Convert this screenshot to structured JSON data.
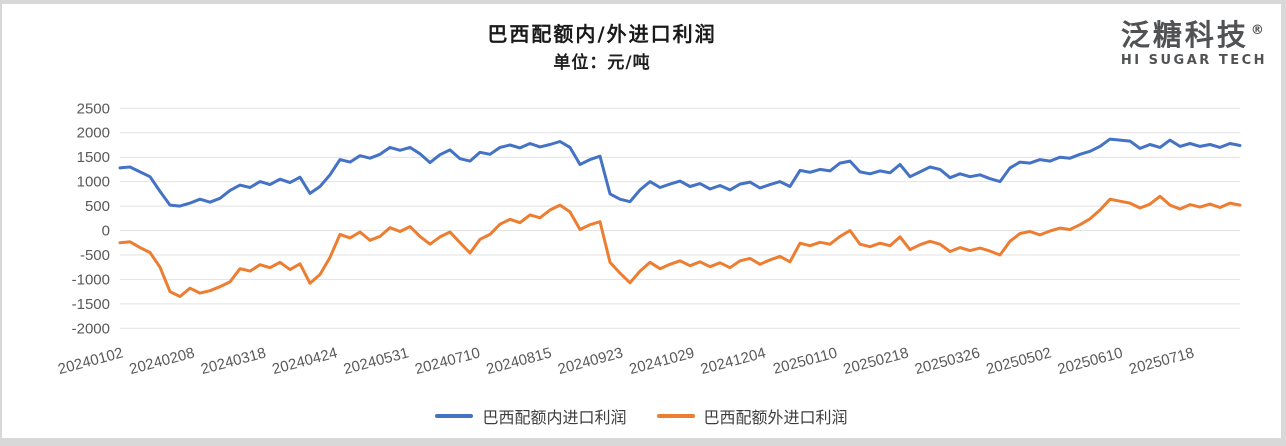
{
  "header": {
    "title": "巴西配额内/外进口利润",
    "subtitle": "单位：元/吨"
  },
  "logo": {
    "cn": "泛糖科技",
    "reg": "®",
    "en": "HI SUGAR TECH"
  },
  "colors": {
    "series_blue": "#4472C4",
    "series_orange": "#ED7D31",
    "grid": "#E2E2E2",
    "axis_text": "#595959",
    "title_text": "#1A1A1A",
    "logo_text": "#515254",
    "page_edge": "#D8D8D8",
    "card_background": "#FFFFFF"
  },
  "chart_data": {
    "type": "line",
    "title": "巴西配额内/外进口利润",
    "unit_label": "单位：元/吨",
    "ylabel": "",
    "xlabel": "",
    "ylim": [
      -2000,
      2500
    ],
    "yticks": [
      2500,
      2000,
      1500,
      1000,
      500,
      0,
      -500,
      -1000,
      -1500,
      -2000
    ],
    "xticks": [
      "20240102",
      "20240208",
      "20240318",
      "20240424",
      "20240531",
      "20240710",
      "20240815",
      "20240923",
      "20241029",
      "20241204",
      "20250110",
      "20250218",
      "20250326",
      "20250502",
      "20250610",
      "20250718"
    ],
    "grid": true,
    "legend_position": "bottom",
    "series": [
      {
        "name": "巴西配额内进口利润",
        "color": "#4472C4",
        "values": [
          1280,
          1300,
          1200,
          1100,
          800,
          520,
          500,
          560,
          640,
          580,
          660,
          820,
          930,
          880,
          1000,
          940,
          1050,
          980,
          1090,
          760,
          900,
          1140,
          1450,
          1400,
          1530,
          1480,
          1560,
          1700,
          1640,
          1700,
          1570,
          1390,
          1550,
          1650,
          1470,
          1420,
          1600,
          1560,
          1700,
          1750,
          1690,
          1780,
          1710,
          1760,
          1820,
          1700,
          1350,
          1450,
          1520,
          750,
          640,
          590,
          830,
          1000,
          880,
          950,
          1010,
          900,
          960,
          850,
          920,
          830,
          950,
          990,
          870,
          940,
          1000,
          900,
          1230,
          1190,
          1250,
          1220,
          1380,
          1420,
          1200,
          1160,
          1220,
          1180,
          1350,
          1100,
          1200,
          1300,
          1250,
          1080,
          1160,
          1100,
          1140,
          1060,
          1000,
          1280,
          1400,
          1380,
          1450,
          1420,
          1500,
          1480,
          1560,
          1620,
          1720,
          1870,
          1850,
          1830,
          1680,
          1760,
          1700,
          1850,
          1720,
          1780,
          1720,
          1760,
          1700,
          1780,
          1740
        ]
      },
      {
        "name": "巴西配额外进口利润",
        "color": "#ED7D31",
        "values": [
          -250,
          -230,
          -350,
          -450,
          -750,
          -1250,
          -1350,
          -1180,
          -1280,
          -1230,
          -1150,
          -1050,
          -780,
          -830,
          -700,
          -760,
          -650,
          -800,
          -680,
          -1080,
          -900,
          -550,
          -80,
          -150,
          -30,
          -200,
          -120,
          60,
          -20,
          80,
          -120,
          -280,
          -130,
          -30,
          -250,
          -460,
          -180,
          -80,
          130,
          230,
          160,
          320,
          260,
          420,
          520,
          380,
          20,
          120,
          180,
          -650,
          -870,
          -1070,
          -830,
          -650,
          -780,
          -690,
          -620,
          -720,
          -640,
          -740,
          -660,
          -760,
          -620,
          -570,
          -690,
          -600,
          -530,
          -640,
          -260,
          -310,
          -240,
          -280,
          -120,
          0,
          -280,
          -330,
          -260,
          -310,
          -130,
          -390,
          -290,
          -220,
          -280,
          -430,
          -350,
          -410,
          -360,
          -420,
          -500,
          -220,
          -60,
          -20,
          -90,
          -10,
          50,
          20,
          120,
          240,
          420,
          640,
          600,
          560,
          460,
          540,
          700,
          520,
          440,
          530,
          480,
          540,
          470,
          560,
          520
        ]
      }
    ]
  }
}
